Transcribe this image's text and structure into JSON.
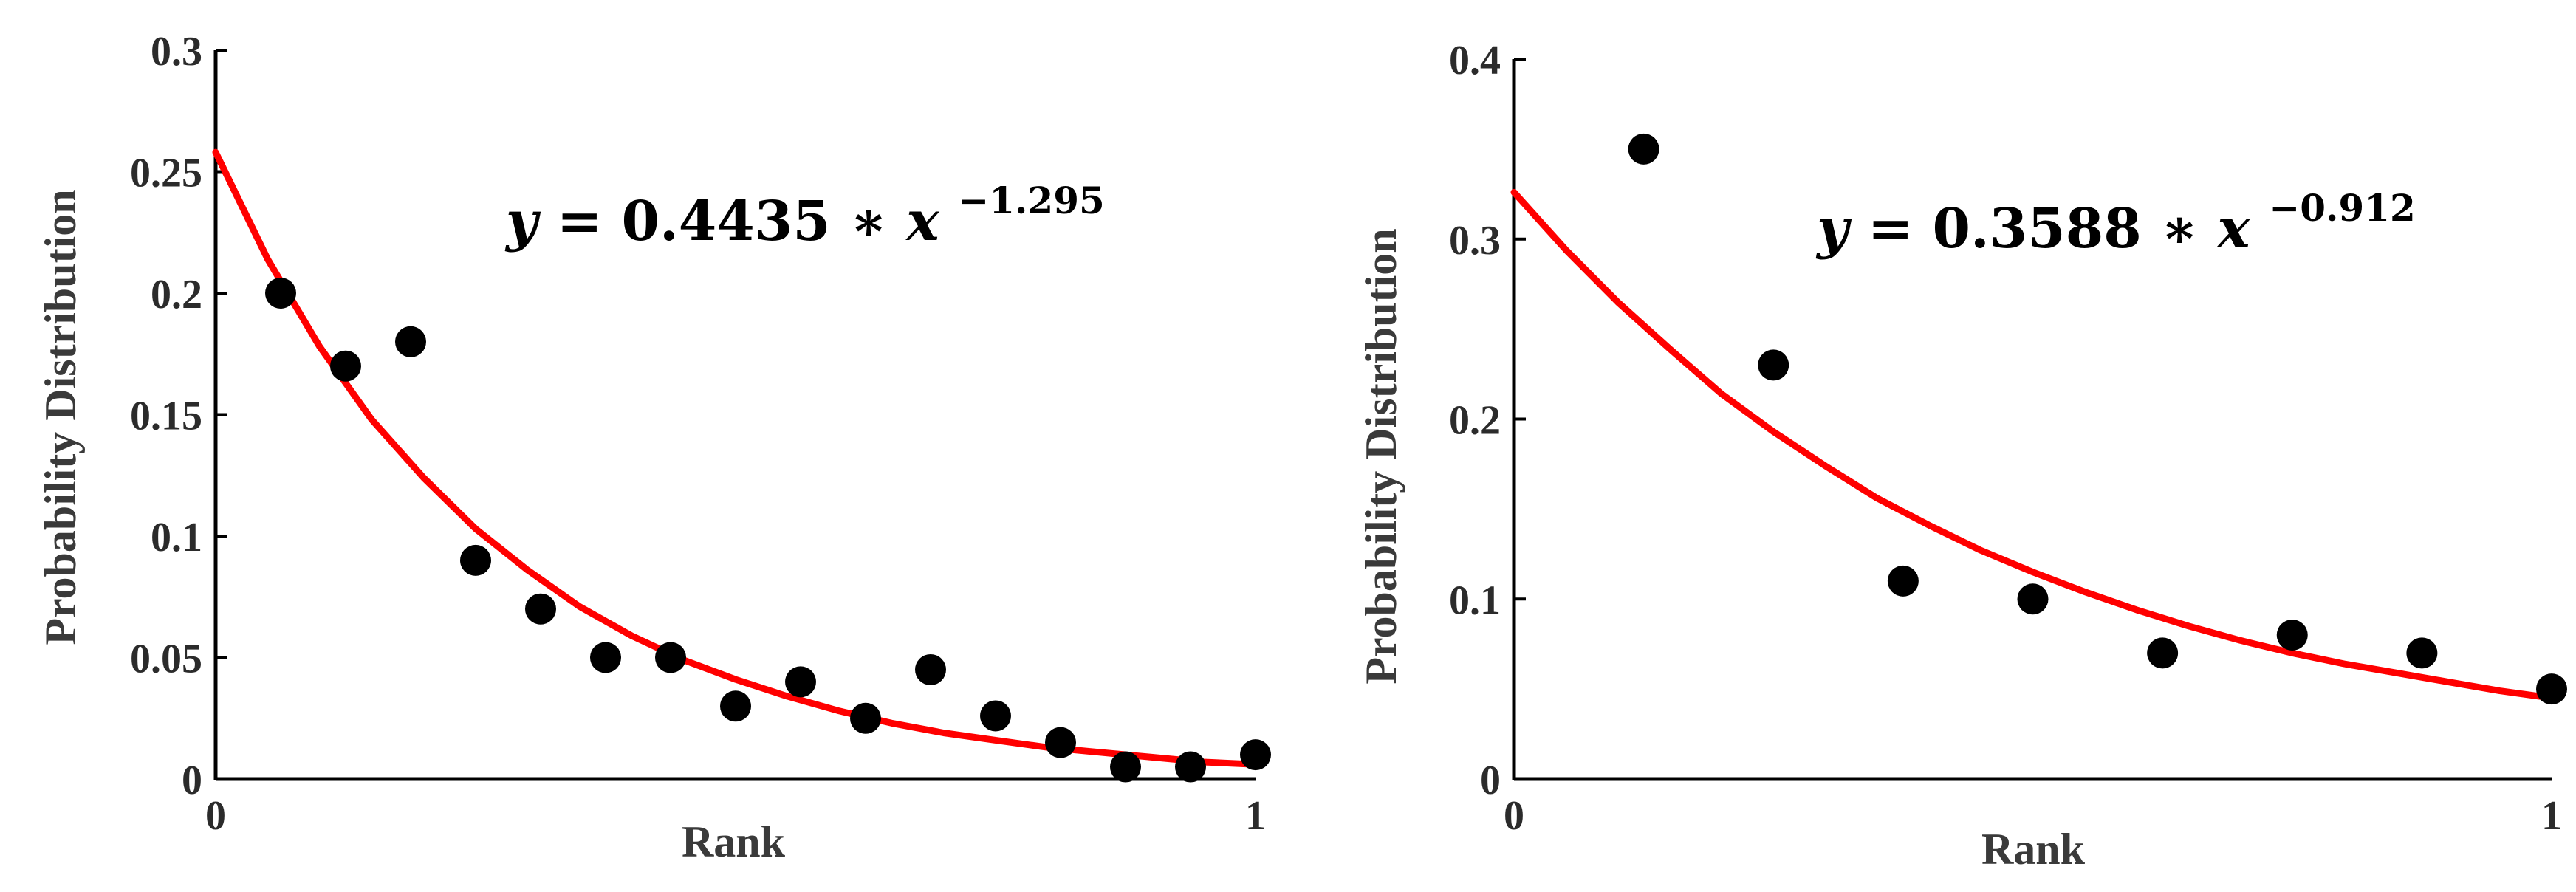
{
  "chart_data": [
    {
      "type": "scatter",
      "title": "",
      "xlabel": "Rank",
      "ylabel": "Probability Distribution",
      "xlim": [
        0,
        1
      ],
      "ylim": [
        0,
        0.3
      ],
      "x_ticks": [
        "0",
        "1"
      ],
      "y_ticks": [
        "0",
        "0.05",
        "0.1",
        "0.15",
        "0.2",
        "0.25",
        "0.3"
      ],
      "grid": false,
      "series": [
        {
          "type": "scatter",
          "color": "#000000",
          "x": [
            0.0625,
            0.125,
            0.1875,
            0.25,
            0.3125,
            0.375,
            0.4375,
            0.5,
            0.5625,
            0.625,
            0.6875,
            0.75,
            0.8125,
            0.875,
            0.9375,
            1.0
          ],
          "y": [
            0.2,
            0.17,
            0.18,
            0.09,
            0.07,
            0.05,
            0.05,
            0.03,
            0.04,
            0.025,
            0.045,
            0.026,
            0.015,
            0.005,
            0.005,
            0.01
          ]
        },
        {
          "type": "line",
          "color": "#ff0000",
          "x": [
            0.0,
            0.05,
            0.1,
            0.15,
            0.2,
            0.25,
            0.3,
            0.35,
            0.4,
            0.45,
            0.5,
            0.55,
            0.6,
            0.65,
            0.7,
            0.75,
            0.8,
            0.85,
            0.9,
            0.95,
            1.0
          ],
          "y": [
            0.258,
            0.214,
            0.178,
            0.148,
            0.124,
            0.103,
            0.086,
            0.071,
            0.059,
            0.049,
            0.041,
            0.034,
            0.028,
            0.023,
            0.019,
            0.016,
            0.013,
            0.011,
            0.009,
            0.007,
            0.006
          ]
        }
      ],
      "annotation": {
        "y": "y",
        "eq": " = ",
        "coef": "0.4435",
        "mul": " ∗ ",
        "x": "x",
        "exp": "−1.295"
      }
    },
    {
      "type": "scatter",
      "title": "",
      "xlabel": "Rank",
      "ylabel": "Probability Distribution",
      "xlim": [
        0,
        1
      ],
      "ylim": [
        0,
        0.4
      ],
      "x_ticks": [
        "0",
        "1"
      ],
      "y_ticks": [
        "0",
        "0.1",
        "0.2",
        "0.3",
        "0.4"
      ],
      "grid": false,
      "series": [
        {
          "type": "scatter",
          "color": "#000000",
          "x": [
            0.125,
            0.25,
            0.375,
            0.5,
            0.625,
            0.75,
            0.875,
            1.0
          ],
          "y": [
            0.35,
            0.23,
            0.11,
            0.1,
            0.07,
            0.08,
            0.07,
            0.05
          ]
        },
        {
          "type": "line",
          "color": "#ff0000",
          "x": [
            0.0,
            0.05,
            0.1,
            0.15,
            0.2,
            0.25,
            0.3,
            0.35,
            0.4,
            0.45,
            0.5,
            0.55,
            0.6,
            0.65,
            0.7,
            0.75,
            0.8,
            0.85,
            0.9,
            0.95,
            1.0
          ],
          "y": [
            0.326,
            0.294,
            0.265,
            0.239,
            0.214,
            0.193,
            0.174,
            0.156,
            0.141,
            0.127,
            0.115,
            0.104,
            0.094,
            0.085,
            0.077,
            0.07,
            0.064,
            0.059,
            0.054,
            0.049,
            0.045
          ]
        }
      ],
      "annotation": {
        "y": "y",
        "eq": " = ",
        "coef": "0.3588",
        "mul": " ∗ ",
        "x": "x",
        "exp": "−0.912"
      }
    }
  ]
}
